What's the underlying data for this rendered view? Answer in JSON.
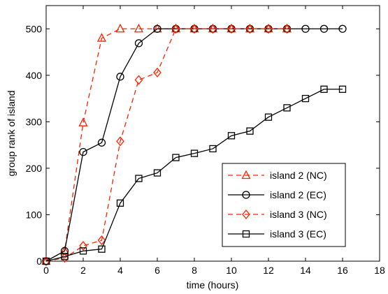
{
  "chart_data": {
    "type": "line",
    "title": "",
    "xlabel": "time (hours)",
    "ylabel": "group rank of island",
    "xlim": [
      0,
      18
    ],
    "ylim": [
      0,
      550
    ],
    "xticks": [
      0,
      2,
      4,
      6,
      8,
      10,
      12,
      14,
      16,
      18
    ],
    "yticks": [
      0,
      100,
      200,
      300,
      400,
      500
    ],
    "grid": false,
    "legend_position": "lower-right",
    "series": [
      {
        "name": "island 2 (NC)",
        "color": "#ff2200",
        "line": "dashed",
        "marker": "triangle",
        "x": [
          0,
          1,
          2,
          3,
          4,
          5,
          6,
          7,
          8,
          9,
          10,
          11,
          12,
          13
        ],
        "y": [
          0,
          22,
          298,
          480,
          500,
          500,
          500,
          500,
          500,
          500,
          500,
          500,
          500,
          500
        ]
      },
      {
        "name": "island 2 (EC)",
        "color": "#000000",
        "line": "solid",
        "marker": "circle",
        "x": [
          0,
          1,
          2,
          3,
          4,
          5,
          6,
          7,
          8,
          9,
          10,
          11,
          12,
          13,
          14,
          15,
          16
        ],
        "y": [
          0,
          22,
          235,
          255,
          397,
          469,
          500,
          500,
          500,
          500,
          500,
          500,
          500,
          500,
          500,
          500,
          500
        ]
      },
      {
        "name": "island 3 (NC)",
        "color": "#ff2200",
        "line": "dashed",
        "marker": "diamond",
        "x": [
          0,
          1,
          2,
          3,
          4,
          5,
          6,
          7,
          8,
          9,
          10,
          11,
          12,
          13
        ],
        "y": [
          0,
          7,
          33,
          45,
          258,
          390,
          406,
          500,
          500,
          500,
          500,
          500,
          500,
          500
        ]
      },
      {
        "name": "island 3 (EC)",
        "color": "#000000",
        "line": "solid",
        "marker": "square",
        "x": [
          0,
          1,
          2,
          3,
          4,
          5,
          6,
          7,
          8,
          9,
          10,
          11,
          12,
          13,
          14,
          15,
          16
        ],
        "y": [
          0,
          10,
          22,
          26,
          125,
          178,
          190,
          223,
          232,
          242,
          270,
          280,
          310,
          330,
          350,
          370,
          370
        ]
      }
    ]
  }
}
